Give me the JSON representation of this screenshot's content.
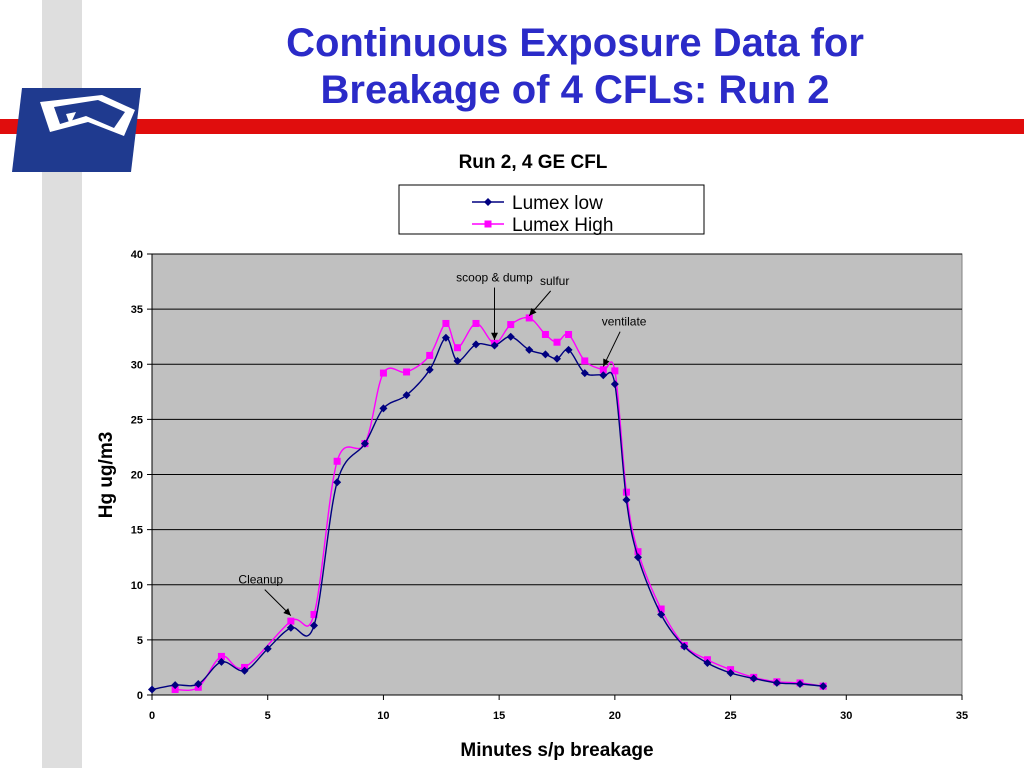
{
  "slide": {
    "title_line1": "Continuous Exposure Data for",
    "title_line2": "Breakage of 4 CFLs: Run 2",
    "logo_icon": "eagle-logo-icon",
    "colors": {
      "title": "#2b2bc8",
      "red_bar": "#e00d0d",
      "logo_blue": "#1f3a8f"
    }
  },
  "chart_data": {
    "type": "line",
    "title": "Run 2, 4 GE CFL",
    "xlabel": "Minutes s/p breakage",
    "ylabel": "Hg ug/m3",
    "xlim": [
      0,
      35
    ],
    "ylim": [
      0,
      40
    ],
    "xticks": [
      0,
      5,
      10,
      15,
      20,
      25,
      30,
      35
    ],
    "yticks": [
      0,
      5,
      10,
      15,
      20,
      25,
      30,
      35,
      40
    ],
    "grid": "horizontal",
    "legend_position": "top",
    "plot_background": "#c0c0c0",
    "series": [
      {
        "name": "Lumex low",
        "color": "#000080",
        "marker": "diamond",
        "points": [
          [
            0,
            0.5
          ],
          [
            1,
            0.9
          ],
          [
            2,
            1.0
          ],
          [
            3,
            3.0
          ],
          [
            4,
            2.2
          ],
          [
            5,
            4.2
          ],
          [
            6,
            6.1
          ],
          [
            7,
            6.3
          ],
          [
            8,
            19.3
          ],
          [
            9.2,
            22.8
          ],
          [
            10,
            26.0
          ],
          [
            11,
            27.2
          ],
          [
            12,
            29.5
          ],
          [
            12.7,
            32.4
          ],
          [
            13.2,
            30.3
          ],
          [
            14,
            31.8
          ],
          [
            14.8,
            31.7
          ],
          [
            15.5,
            32.5
          ],
          [
            16.3,
            31.3
          ],
          [
            17,
            30.9
          ],
          [
            17.5,
            30.5
          ],
          [
            18,
            31.3
          ],
          [
            18.7,
            29.2
          ],
          [
            19.5,
            29.0
          ],
          [
            20,
            28.2
          ],
          [
            20.5,
            17.7
          ],
          [
            21,
            12.5
          ],
          [
            22,
            7.3
          ],
          [
            23,
            4.4
          ],
          [
            24,
            2.9
          ],
          [
            25,
            2.0
          ],
          [
            26,
            1.5
          ],
          [
            27,
            1.1
          ],
          [
            28,
            1.0
          ],
          [
            29,
            0.8
          ]
        ]
      },
      {
        "name": "Lumex High",
        "color": "#ff00ff",
        "marker": "square",
        "points": [
          [
            1,
            0.5
          ],
          [
            2,
            0.7
          ],
          [
            3,
            3.5
          ],
          [
            4,
            2.5
          ],
          [
            6,
            6.7
          ],
          [
            7,
            7.3
          ],
          [
            8,
            21.2
          ],
          [
            9.2,
            22.8
          ],
          [
            10,
            29.2
          ],
          [
            11,
            29.3
          ],
          [
            12,
            30.8
          ],
          [
            12.7,
            33.7
          ],
          [
            13.2,
            31.5
          ],
          [
            14,
            33.7
          ],
          [
            14.8,
            31.9
          ],
          [
            15.5,
            33.6
          ],
          [
            16.3,
            34.2
          ],
          [
            17,
            32.7
          ],
          [
            17.5,
            32.0
          ],
          [
            18,
            32.7
          ],
          [
            18.7,
            30.3
          ],
          [
            19.5,
            29.5
          ],
          [
            20,
            29.4
          ],
          [
            20.5,
            18.4
          ],
          [
            21,
            13.0
          ],
          [
            22,
            7.8
          ],
          [
            23,
            4.5
          ],
          [
            24,
            3.2
          ],
          [
            25,
            2.3
          ],
          [
            26,
            1.6
          ],
          [
            27,
            1.2
          ],
          [
            28,
            1.1
          ],
          [
            29,
            0.8
          ]
        ]
      }
    ],
    "annotations": [
      {
        "text": "scoop & dump",
        "x": 14.8,
        "y": 32.2,
        "label_at": [
          14.8,
          37.5
        ]
      },
      {
        "text": "sulfur",
        "x": 16.3,
        "y": 34.4,
        "label_at": [
          17.4,
          37.2
        ]
      },
      {
        "text": "ventilate",
        "x": 19.5,
        "y": 29.8,
        "label_at": [
          20.4,
          33.5
        ]
      },
      {
        "text": "Cleanup",
        "x": 6.0,
        "y": 7.2,
        "label_at": [
          4.7,
          10.1
        ]
      }
    ]
  }
}
